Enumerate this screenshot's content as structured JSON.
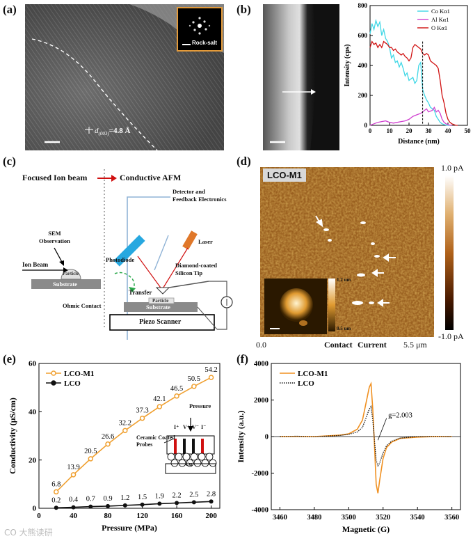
{
  "panels": {
    "a": {
      "label": "(a)",
      "fft_label": "Rock-salt",
      "d_spacing_sub": "(003)",
      "d_spacing_text": "d",
      "d_spacing_value": "=4.8 Å"
    },
    "b": {
      "label": "(b)",
      "chart_data": {
        "type": "line",
        "title": "",
        "xlabel": "Distance (nm)",
        "ylabel": "Intensity (cps)",
        "xlim": [
          0,
          50
        ],
        "ylim": [
          0,
          800
        ],
        "xticks": [
          "0",
          "10",
          "20",
          "30",
          "40",
          "50"
        ],
        "yticks": [
          "0",
          "200",
          "400",
          "600",
          "800"
        ],
        "legend": [
          "Co Kα1",
          "Al Kα1",
          "O Kα1"
        ],
        "series": [
          {
            "name": "Co Kα1",
            "color": "#3fd7e6",
            "x": [
              0,
              1,
              2,
              3,
              4,
              5,
              6,
              7,
              8,
              9,
              10,
              11,
              12,
              13,
              14,
              15,
              16,
              17,
              18,
              19,
              20,
              21,
              22,
              23,
              24,
              25,
              26,
              27,
              28,
              29,
              30,
              31,
              32,
              33,
              34,
              35,
              36,
              37,
              38,
              39,
              40,
              41,
              42
            ],
            "y": [
              610,
              680,
              640,
              700,
              660,
              690,
              600,
              640,
              580,
              560,
              520,
              450,
              470,
              420,
              430,
              390,
              420,
              380,
              330,
              350,
              300,
              310,
              320,
              280,
              300,
              400,
              420,
              240,
              200,
              170,
              150,
              120,
              110,
              100,
              60,
              40,
              20,
              10,
              5,
              2,
              0,
              0,
              0
            ]
          },
          {
            "name": "Al Kα1",
            "color": "#d040d0",
            "x": [
              0,
              2,
              4,
              6,
              8,
              10,
              12,
              14,
              16,
              18,
              20,
              22,
              24,
              26,
              28,
              29,
              30,
              32,
              33,
              34,
              35,
              36,
              37,
              38,
              39,
              40,
              41,
              42
            ],
            "y": [
              0,
              10,
              20,
              25,
              30,
              20,
              15,
              20,
              25,
              30,
              40,
              60,
              70,
              80,
              100,
              110,
              90,
              100,
              120,
              90,
              100,
              80,
              40,
              20,
              10,
              5,
              0,
              0
            ]
          },
          {
            "name": "O Kα1",
            "color": "#d01010",
            "x": [
              0,
              1,
              2,
              3,
              4,
              5,
              6,
              7,
              8,
              9,
              10,
              11,
              12,
              13,
              14,
              15,
              16,
              17,
              18,
              19,
              20,
              21,
              22,
              23,
              24,
              25,
              26,
              27,
              28,
              29,
              30,
              31,
              32,
              33,
              34,
              35,
              36,
              37,
              38,
              39,
              40,
              41,
              42,
              43,
              44,
              45
            ],
            "y": [
              520,
              560,
              540,
              550,
              520,
              540,
              520,
              560,
              550,
              540,
              520,
              520,
              500,
              510,
              490,
              480,
              470,
              480,
              460,
              450,
              430,
              450,
              520,
              540,
              530,
              520,
              510,
              480,
              470,
              480,
              470,
              430,
              420,
              410,
              400,
              380,
              300,
              200,
              150,
              80,
              40,
              20,
              10,
              5,
              0,
              0
            ]
          }
        ],
        "dashed_marker_x": 27
      }
    },
    "c": {
      "label": "(c)",
      "header_left": "Focused Ion beam",
      "header_right": "Conductive AFM",
      "detector_label": "Detector and\nFeedback Electronics",
      "sem_label": "SEM\nObservation",
      "ion_beam_label": "Ion Beam",
      "particle_label_1": "Particle",
      "substrate_label_1": "Substrate",
      "photodiode_label": "Photodiode",
      "laser_label": "Laser",
      "tip_label": "Diamond-coated\nSilicon Tip",
      "transfer_label": "Transfer",
      "ohmic_label": "Ohmic Contact",
      "particle_label_2": "Particle",
      "substrate_label_2": "Substrate",
      "scanner_label": "Piezo Scanner"
    },
    "d": {
      "label": "(d)",
      "sample_label": "LCO-M1",
      "scale_top": "1.0 pA",
      "scale_bottom": "-1.0 pA",
      "axis_left": "0.0",
      "axis_right": "5.5 μm",
      "contact_label": "Contact",
      "current_label": "Current",
      "inset_top": "1.2 um",
      "inset_bottom": "0.5 um"
    },
    "e": {
      "label": "(e)",
      "chart_data": {
        "type": "line",
        "xlabel": "Pressure (MPa)",
        "ylabel": "Conductivity (μS/cm)",
        "xlim": [
          0,
          210
        ],
        "ylim": [
          0,
          60
        ],
        "xticks": [
          "0",
          "40",
          "80",
          "120",
          "160",
          "200"
        ],
        "yticks": [
          "0",
          "20",
          "40",
          "60"
        ],
        "legend": [
          "LCO-M1",
          "LCO"
        ],
        "x": [
          20,
          40,
          60,
          80,
          100,
          120,
          140,
          160,
          180,
          200
        ],
        "series": [
          {
            "name": "LCO-M1",
            "color": "#f0a030",
            "values": [
              6.8,
              13.9,
              20.5,
              26.6,
              32.2,
              37.3,
              42.1,
              46.5,
              50.5,
              54.2
            ],
            "labels": [
              "6.8",
              "13.9",
              "20.5",
              "26.6",
              "32.2",
              "37.3",
              "42.1",
              "46.5",
              "50.5",
              "54.2"
            ]
          },
          {
            "name": "LCO",
            "color": "#111111",
            "values": [
              0.2,
              0.4,
              0.7,
              0.9,
              1.2,
              1.5,
              1.9,
              2.2,
              2.5,
              2.8
            ],
            "labels": [
              "0.2",
              "0.4",
              "0.7",
              "0.9",
              "1.2",
              "1.5",
              "1.9",
              "2.2",
              "2.5",
              "2.8"
            ]
          }
        ],
        "inset": {
          "pressure_label": "Pressure",
          "probe_labels": [
            "I⁺",
            "V⁺",
            "V⁻",
            "I⁻"
          ],
          "probes_label": "Ceramic Coated\nProbes",
          "base_label": "Cu"
        }
      }
    },
    "f": {
      "label": "(f)",
      "chart_data": {
        "type": "line",
        "xlabel": "Magnetic (G)",
        "ylabel": "Intensity (a.u.)",
        "xlim": [
          3455,
          3565
        ],
        "ylim": [
          -4000,
          4000
        ],
        "xticks": [
          "3460",
          "3480",
          "3500",
          "3520",
          "3540",
          "3560"
        ],
        "yticks": [
          "-4000",
          "-2000",
          "0",
          "2000",
          "4000"
        ],
        "legend": [
          "LCO-M1",
          "LCO"
        ],
        "annotation": "g=2.003",
        "series": [
          {
            "name": "LCO-M1",
            "color": "#f09020",
            "x": [
              3460,
              3470,
              3480,
              3490,
              3495,
              3500,
              3505,
              3508,
              3510,
              3512,
              3513,
              3514,
              3515,
              3516,
              3517,
              3518,
              3520,
              3522,
              3525,
              3530,
              3540,
              3550,
              3560
            ],
            "y": [
              0,
              0,
              0,
              50,
              80,
              150,
              400,
              900,
              1800,
              2700,
              2900,
              1500,
              -500,
              -2600,
              -3100,
              -2400,
              -1200,
              -600,
              -300,
              -100,
              -30,
              0,
              0
            ]
          },
          {
            "name": "LCO",
            "color": "#111111",
            "x": [
              3460,
              3470,
              3480,
              3490,
              3495,
              3500,
              3505,
              3508,
              3510,
              3512,
              3513,
              3514,
              3515,
              3516,
              3517,
              3518,
              3520,
              3522,
              3525,
              3530,
              3540,
              3550,
              3560
            ],
            "y": [
              0,
              20,
              -10,
              40,
              60,
              120,
              250,
              500,
              1000,
              1500,
              1650,
              900,
              -200,
              -1300,
              -1600,
              -1450,
              -900,
              -500,
              -250,
              -80,
              0,
              10,
              0
            ]
          }
        ]
      }
    }
  },
  "watermark": "CO 大熊读研"
}
